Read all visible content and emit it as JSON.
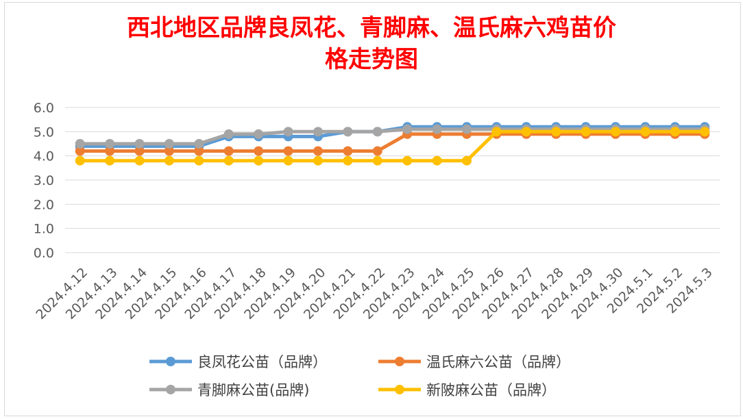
{
  "title_line1": "西北地区品牌良凤花、青脚麻、温氏麻六鸡苗价",
  "title_line2": "格走势图",
  "chart_data": {
    "type": "line",
    "title": "西北地区品牌良凤花、青脚麻、温氏麻六鸡苗价格走势图",
    "categories": [
      "2024.4.12",
      "2024.4.13",
      "2024.4.14",
      "2024.4.15",
      "2024.4.16",
      "2024.4.17",
      "2024.4.18",
      "2024.4.19",
      "2024.4.20",
      "2024.4.21",
      "2024.4.22",
      "2024.4.23",
      "2024.4.24",
      "2024.4.25",
      "2024.4.26",
      "2024.4.27",
      "2024.4.28",
      "2024.4.29",
      "2024.4.30",
      "2024.5.1",
      "2024.5.2",
      "2024.5.3"
    ],
    "y_ticks": [
      "0.0",
      "1.0",
      "2.0",
      "3.0",
      "4.0",
      "5.0",
      "6.0"
    ],
    "ylim": [
      0,
      6
    ],
    "grid": true,
    "legend_position": "bottom",
    "series": [
      {
        "name": "良凤花公苗（品牌）",
        "color": "#5b9bd5",
        "values": [
          4.4,
          4.4,
          4.4,
          4.4,
          4.4,
          4.8,
          4.8,
          4.8,
          4.8,
          5.0,
          5.0,
          5.2,
          5.2,
          5.2,
          5.2,
          5.2,
          5.2,
          5.2,
          5.2,
          5.2,
          5.2,
          5.2
        ]
      },
      {
        "name": "温氏麻六公苗（品牌）",
        "color": "#ed7d31",
        "values": [
          4.2,
          4.2,
          4.2,
          4.2,
          4.2,
          4.2,
          4.2,
          4.2,
          4.2,
          4.2,
          4.2,
          4.9,
          4.9,
          4.9,
          4.9,
          4.9,
          4.9,
          4.9,
          4.9,
          4.9,
          4.9,
          4.9
        ]
      },
      {
        "name": "青脚麻公苗(品牌)",
        "color": "#a5a5a5",
        "values": [
          4.5,
          4.5,
          4.5,
          4.5,
          4.5,
          4.9,
          4.9,
          5.0,
          5.0,
          5.0,
          5.0,
          5.1,
          5.1,
          5.1,
          5.1,
          5.1,
          5.1,
          5.1,
          5.1,
          5.1,
          5.1,
          5.1
        ]
      },
      {
        "name": "新陂麻公苗（品牌）",
        "color": "#ffc000",
        "values": [
          3.8,
          3.8,
          3.8,
          3.8,
          3.8,
          3.8,
          3.8,
          3.8,
          3.8,
          3.8,
          3.8,
          3.8,
          3.8,
          3.8,
          5.0,
          5.0,
          5.0,
          5.0,
          5.0,
          5.0,
          5.0,
          5.0
        ]
      }
    ]
  }
}
